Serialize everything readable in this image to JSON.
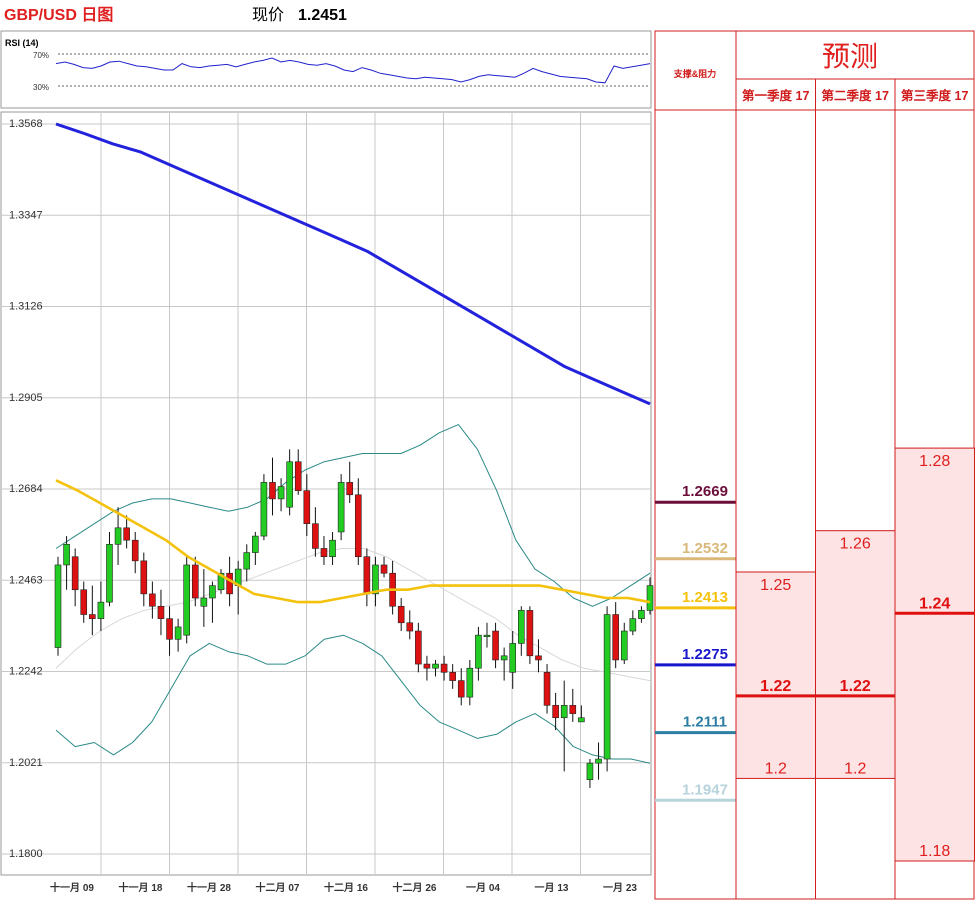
{
  "header": {
    "title": "GBP/USD 日图",
    "price_label": "现价",
    "price_value": "1.2451"
  },
  "rsi": {
    "label": "RSI (14)",
    "level_high": "70%",
    "level_low": "30%",
    "values": [
      58,
      60,
      57,
      53,
      52,
      55,
      60,
      61,
      58,
      55,
      54,
      52,
      50,
      50,
      58,
      54,
      53,
      55,
      56,
      57,
      54,
      57,
      60,
      62,
      65,
      60,
      62,
      60,
      57,
      56,
      58,
      55,
      50,
      48,
      53,
      50,
      46,
      44,
      42,
      40,
      39,
      41,
      40,
      39,
      38,
      35,
      38,
      42,
      44,
      43,
      42,
      41,
      46,
      52,
      48,
      45,
      42,
      41,
      40,
      39,
      35,
      34,
      55,
      52,
      54,
      56,
      58
    ],
    "min": 0,
    "max": 100
  },
  "chart_data": [
    {
      "type": "candlestick",
      "y_ticks": [
        "1.3568",
        "1.3347",
        "1.3126",
        "1.2905",
        "1.2684",
        "1.2463",
        "1.2242",
        "1.2021",
        "1.1800"
      ],
      "ylim": [
        1.18,
        1.3568
      ],
      "x_ticks": [
        "十一月 09",
        "十一月 18",
        "十一月 28",
        "十二月 07",
        "十二月 16",
        "十二月 26",
        "一月 04",
        "一月 13",
        "一月 23"
      ],
      "colors": {
        "up": "#22cc22",
        "down": "#dd1111",
        "ma200": "#2222dd",
        "ma50": "#f4c20d",
        "bands": "#2a8a86",
        "mid": "#d8d8d8"
      },
      "candles": [
        [
          1.23,
          1.252,
          1.228,
          1.25
        ],
        [
          1.25,
          1.257,
          1.244,
          1.255
        ],
        [
          1.252,
          1.254,
          1.24,
          1.244
        ],
        [
          1.244,
          1.246,
          1.236,
          1.238
        ],
        [
          1.238,
          1.245,
          1.233,
          1.237
        ],
        [
          1.237,
          1.246,
          1.234,
          1.241
        ],
        [
          1.241,
          1.258,
          1.24,
          1.255
        ],
        [
          1.255,
          1.264,
          1.25,
          1.259
        ],
        [
          1.259,
          1.262,
          1.254,
          1.256
        ],
        [
          1.256,
          1.258,
          1.248,
          1.251
        ],
        [
          1.251,
          1.253,
          1.24,
          1.243
        ],
        [
          1.243,
          1.246,
          1.237,
          1.24
        ],
        [
          1.24,
          1.244,
          1.233,
          1.237
        ],
        [
          1.237,
          1.24,
          1.228,
          1.232
        ],
        [
          1.232,
          1.237,
          1.229,
          1.235
        ],
        [
          1.233,
          1.252,
          1.231,
          1.25
        ],
        [
          1.25,
          1.252,
          1.24,
          1.242
        ],
        [
          1.24,
          1.249,
          1.235,
          1.242
        ],
        [
          1.242,
          1.246,
          1.236,
          1.245
        ],
        [
          1.244,
          1.249,
          1.243,
          1.248
        ],
        [
          1.248,
          1.252,
          1.24,
          1.243
        ],
        [
          1.245,
          1.251,
          1.238,
          1.249
        ],
        [
          1.249,
          1.255,
          1.246,
          1.253
        ],
        [
          1.253,
          1.258,
          1.25,
          1.257
        ],
        [
          1.257,
          1.272,
          1.256,
          1.27
        ],
        [
          1.27,
          1.276,
          1.262,
          1.266
        ],
        [
          1.266,
          1.271,
          1.263,
          1.269
        ],
        [
          1.264,
          1.278,
          1.262,
          1.275
        ],
        [
          1.275,
          1.278,
          1.267,
          1.268
        ],
        [
          1.268,
          1.272,
          1.257,
          1.26
        ],
        [
          1.26,
          1.264,
          1.252,
          1.254
        ],
        [
          1.254,
          1.257,
          1.25,
          1.252
        ],
        [
          1.252,
          1.258,
          1.25,
          1.256
        ],
        [
          1.258,
          1.272,
          1.256,
          1.27
        ],
        [
          1.27,
          1.275,
          1.265,
          1.267
        ],
        [
          1.267,
          1.271,
          1.25,
          1.252
        ],
        [
          1.252,
          1.254,
          1.24,
          1.243
        ],
        [
          1.243,
          1.252,
          1.24,
          1.25
        ],
        [
          1.25,
          1.252,
          1.247,
          1.248
        ],
        [
          1.248,
          1.251,
          1.238,
          1.24
        ],
        [
          1.24,
          1.242,
          1.234,
          1.236
        ],
        [
          1.236,
          1.239,
          1.232,
          1.234
        ],
        [
          1.234,
          1.236,
          1.224,
          1.226
        ],
        [
          1.226,
          1.228,
          1.222,
          1.225
        ],
        [
          1.225,
          1.227,
          1.223,
          1.226
        ],
        [
          1.226,
          1.228,
          1.222,
          1.224
        ],
        [
          1.224,
          1.226,
          1.22,
          1.222
        ],
        [
          1.222,
          1.225,
          1.216,
          1.218
        ],
        [
          1.218,
          1.227,
          1.216,
          1.225
        ],
        [
          1.225,
          1.235,
          1.222,
          1.233
        ],
        [
          1.233,
          1.236,
          1.23,
          1.233
        ],
        [
          1.234,
          1.236,
          1.225,
          1.227
        ],
        [
          1.227,
          1.23,
          1.222,
          1.228
        ],
        [
          1.224,
          1.234,
          1.22,
          1.231
        ],
        [
          1.231,
          1.24,
          1.228,
          1.239
        ],
        [
          1.239,
          1.24,
          1.226,
          1.228
        ],
        [
          1.228,
          1.232,
          1.224,
          1.227
        ],
        [
          1.224,
          1.226,
          1.214,
          1.216
        ],
        [
          1.216,
          1.219,
          1.21,
          1.213
        ],
        [
          1.213,
          1.222,
          1.2,
          1.216
        ],
        [
          1.216,
          1.22,
          1.212,
          1.214
        ],
        [
          1.212,
          1.216,
          1.212,
          1.213
        ],
        [
          1.198,
          1.203,
          1.196,
          1.202
        ],
        [
          1.202,
          1.207,
          1.198,
          1.203
        ],
        [
          1.203,
          1.24,
          1.2,
          1.238
        ],
        [
          1.238,
          1.241,
          1.225,
          1.227
        ],
        [
          1.227,
          1.236,
          1.226,
          1.234
        ],
        [
          1.234,
          1.239,
          1.233,
          1.237
        ],
        [
          1.237,
          1.24,
          1.236,
          1.239
        ],
        [
          1.239,
          1.247,
          1.238,
          1.245
        ]
      ],
      "series": [
        {
          "values": [
            1.3568,
            1.3545,
            1.352,
            1.35,
            1.347,
            1.344,
            1.341,
            1.338,
            1.335,
            1.332,
            1.329,
            1.326,
            1.322,
            1.318,
            1.314,
            1.31,
            1.306,
            1.302,
            1.298,
            1.295,
            1.292,
            1.289
          ]
        },
        {
          "values": [
            1.2705,
            1.268,
            1.265,
            1.262,
            1.259,
            1.256,
            1.252,
            1.249,
            1.246,
            1.243,
            1.242,
            1.241,
            1.241,
            1.242,
            1.243,
            1.244,
            1.244,
            1.245,
            1.245,
            1.245,
            1.245,
            1.245,
            1.245,
            1.244,
            1.243,
            1.242,
            1.242,
            1.241
          ]
        },
        {
          "values": [
            1.254,
            1.257,
            1.26,
            1.263,
            1.265,
            1.266,
            1.266,
            1.265,
            1.264,
            1.263,
            1.264,
            1.266,
            1.27,
            1.273,
            1.275,
            1.276,
            1.277,
            1.277,
            1.277,
            1.279,
            1.282,
            1.284,
            1.278,
            1.268,
            1.256,
            1.249,
            1.246,
            1.242,
            1.24,
            1.242,
            1.245,
            1.248
          ]
        },
        {
          "values": [
            1.21,
            1.206,
            1.207,
            1.204,
            1.207,
            1.212,
            1.22,
            1.228,
            1.231,
            1.229,
            1.228,
            1.226,
            1.226,
            1.228,
            1.232,
            1.233,
            1.231,
            1.228,
            1.222,
            1.216,
            1.212,
            1.21,
            1.208,
            1.209,
            1.212,
            1.214,
            1.211,
            1.206,
            1.204,
            1.203,
            1.203,
            1.202
          ]
        },
        {
          "values": [
            1.225,
            1.23,
            1.234,
            1.237,
            1.239,
            1.24,
            1.241,
            1.243,
            1.245,
            1.247,
            1.249,
            1.251,
            1.253,
            1.254,
            1.254,
            1.252,
            1.249,
            1.246,
            1.243,
            1.24,
            1.237,
            1.233,
            1.23,
            1.227,
            1.225,
            1.224,
            1.223,
            1.222
          ]
        }
      ]
    }
  ],
  "levels_panel": {
    "title": "支撑&阻力",
    "levels": [
      {
        "value": 1.2669,
        "label": "1.2669",
        "color": "#6b0f3a"
      },
      {
        "value": 1.2532,
        "label": "1.2532",
        "color": "#d9b87a"
      },
      {
        "value": 1.2413,
        "label": "1.2413",
        "color": "#f4c20d"
      },
      {
        "value": 1.2275,
        "label": "1.2275",
        "color": "#1717cc"
      },
      {
        "value": 1.2111,
        "label": "1.2111",
        "color": "#2e7ea3"
      },
      {
        "value": 1.1947,
        "label": "1.1947",
        "color": "#b7d3dc"
      }
    ]
  },
  "forecast": {
    "title": "预测",
    "columns": [
      {
        "header": "第一季度 17",
        "high": 1.25,
        "high_label": "1.25",
        "mid": 1.22,
        "mid_label": "1.22",
        "low": 1.2,
        "low_label": "1.2"
      },
      {
        "header": "第二季度 17",
        "high": 1.26,
        "high_label": "1.26",
        "mid": 1.22,
        "mid_label": "1.22",
        "low": 1.2,
        "low_label": "1.2"
      },
      {
        "header": "第三季度 17",
        "high": 1.28,
        "high_label": "1.28",
        "mid": 1.24,
        "mid_label": "1.24",
        "low": 1.18,
        "low_label": "1.18"
      }
    ]
  }
}
